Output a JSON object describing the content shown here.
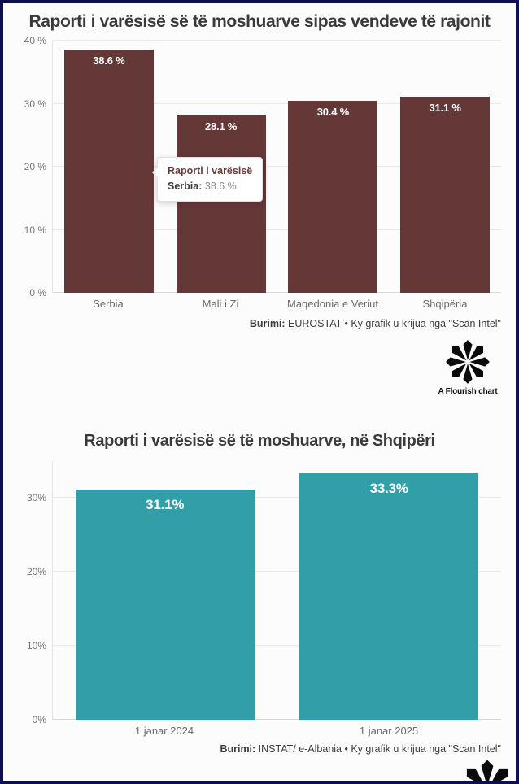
{
  "page": {
    "border_color": "#0e0e52",
    "background": "#fcfcfd"
  },
  "chart_data": [
    {
      "type": "bar",
      "title": "Raporti i varësisë së të moshuarve sipas vendeve të rajonit",
      "categories": [
        "Serbia",
        "Mali i Zi",
        "Maqedonia e Veriut",
        "Shqipëria"
      ],
      "values": [
        38.6,
        28.1,
        30.4,
        31.1
      ],
      "value_labels": [
        "38.6 %",
        "28.1 %",
        "30.4 %",
        "31.1 %"
      ],
      "xlabel": "",
      "ylabel": "",
      "ylim": [
        0,
        40
      ],
      "yticks": [
        0,
        10,
        20,
        30,
        40
      ],
      "ytick_labels": [
        "0 %",
        "10 %",
        "20 %",
        "30 %",
        "40 %"
      ],
      "grid": true,
      "legend": "none",
      "bar_color": "#653838",
      "source_label": "Burimi:",
      "source_text": " EUROSTAT • Ky grafik u krijua nga \"Scan Intel\"",
      "tooltip": {
        "title": "Raporti i varësisë",
        "series": "Serbia:",
        "value": "38.6 %"
      }
    },
    {
      "type": "bar",
      "title": "Raporti i varësisë së të moshuarve, në Shqipëri",
      "categories": [
        "1 janar 2024",
        "1 janar 2025"
      ],
      "values": [
        31.1,
        33.3
      ],
      "value_labels": [
        "31.1%",
        "33.3%"
      ],
      "xlabel": "",
      "ylabel": "",
      "ylim": [
        0,
        35
      ],
      "yticks": [
        0,
        10,
        20,
        30
      ],
      "ytick_labels": [
        "0%",
        "10%",
        "20%",
        "30%"
      ],
      "grid": true,
      "legend": "none",
      "bar_color": "#329ea7",
      "source_label": "Burimi:",
      "source_text": " INSTAT/ e-Albania • Ky grafik u krijua nga \"Scan Intel\""
    }
  ],
  "branding": {
    "caption": "A Flourish chart"
  }
}
